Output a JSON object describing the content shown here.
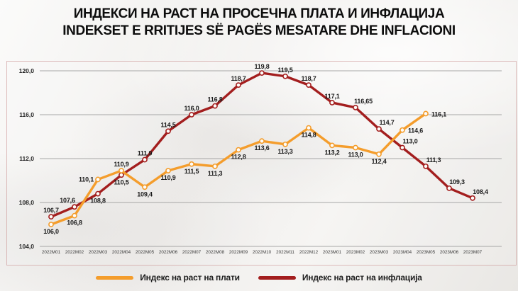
{
  "title": {
    "line1": "ИНДЕКСИ НА РАСТ НА ПРОСЕЧНА ПЛАТА И ИНФЛАЦИЈА",
    "line2": "INDEKSET E RRITIJES SË PAGËS MESATARE DHE INFLACIONI"
  },
  "chart_data": {
    "type": "line",
    "title": "ИНДЕКСИ НА РАСТ НА ПРОСЕЧНА ПЛАТА И ИНФЛАЦИЈА / INDEKSET E RRITIJES SË PAGËS MESATARE DHE INFLACIONI",
    "categories": [
      "2022M01",
      "2022M02",
      "2022M03",
      "2022M04",
      "2022M05",
      "2022M06",
      "2022M07",
      "2022M08",
      "2022M09",
      "2022M10",
      "2022M11",
      "2022M12",
      "2023M01",
      "2023M02",
      "2023M03",
      "2023M04",
      "2023M05",
      "2023M06",
      "2023M07"
    ],
    "ylim": [
      104,
      120
    ],
    "grid": true,
    "legend_position": "bottom",
    "yticks": {
      "values": [
        104,
        108,
        112,
        116,
        120
      ],
      "labels": [
        "104,0",
        "108,0",
        "112,0",
        "116,0",
        "120,0"
      ]
    },
    "series": [
      {
        "id": "wages",
        "name": "Индекс на раст на плати",
        "color": "#F49D2C",
        "values": [
          106.0,
          106.8,
          110.1,
          110.9,
          109.4,
          110.9,
          111.5,
          111.3,
          112.8,
          113.6,
          113.3,
          114.8,
          113.2,
          113.0,
          112.4,
          114.6,
          116.1,
          null,
          null
        ],
        "labels": [
          "106,0",
          "106,8",
          "110,1",
          "110,9",
          "109,4",
          "110,9",
          "111,5",
          "111,3",
          "112,8",
          "113,6",
          "113,3",
          "114,8",
          "113,2",
          "113,0",
          "112,4",
          "114,6",
          "116,1",
          "",
          ""
        ],
        "label_pos": [
          "below",
          "below",
          "left",
          "above",
          "below",
          "below",
          "below",
          "below",
          "below",
          "below",
          "below",
          "below",
          "below",
          "below",
          "below",
          "right",
          "right",
          "",
          ""
        ]
      },
      {
        "id": "inflation",
        "name": "Индекс на раст на инфлација",
        "color": "#A31E1E",
        "values": [
          106.7,
          107.6,
          108.8,
          110.5,
          111.9,
          114.5,
          116.0,
          116.8,
          118.7,
          119.8,
          119.5,
          118.7,
          117.1,
          116.65,
          114.7,
          113.0,
          111.3,
          109.3,
          108.4
        ],
        "labels": [
          "106,7",
          "107,6",
          "108,8",
          "110,5",
          "111,9",
          "114,5",
          "116,0",
          "116,8",
          "118,7",
          "119,8",
          "119,5",
          "118,7",
          "117,1",
          "116,65",
          "114,7",
          "113,0",
          "111,3",
          "109,3",
          "108,4"
        ],
        "label_pos": [
          "above",
          "above-left",
          "below",
          "below",
          "above",
          "above",
          "above",
          "above",
          "above",
          "above",
          "above",
          "above",
          "above",
          "above-right",
          "above-right",
          "above-right",
          "above-right",
          "above-right",
          "above-right"
        ]
      }
    ]
  },
  "legend": [
    {
      "label": "Индекс на раст на плати",
      "color": "#F49D2C"
    },
    {
      "label": "Индекс на раст на инфлација",
      "color": "#A31E1E"
    }
  ]
}
